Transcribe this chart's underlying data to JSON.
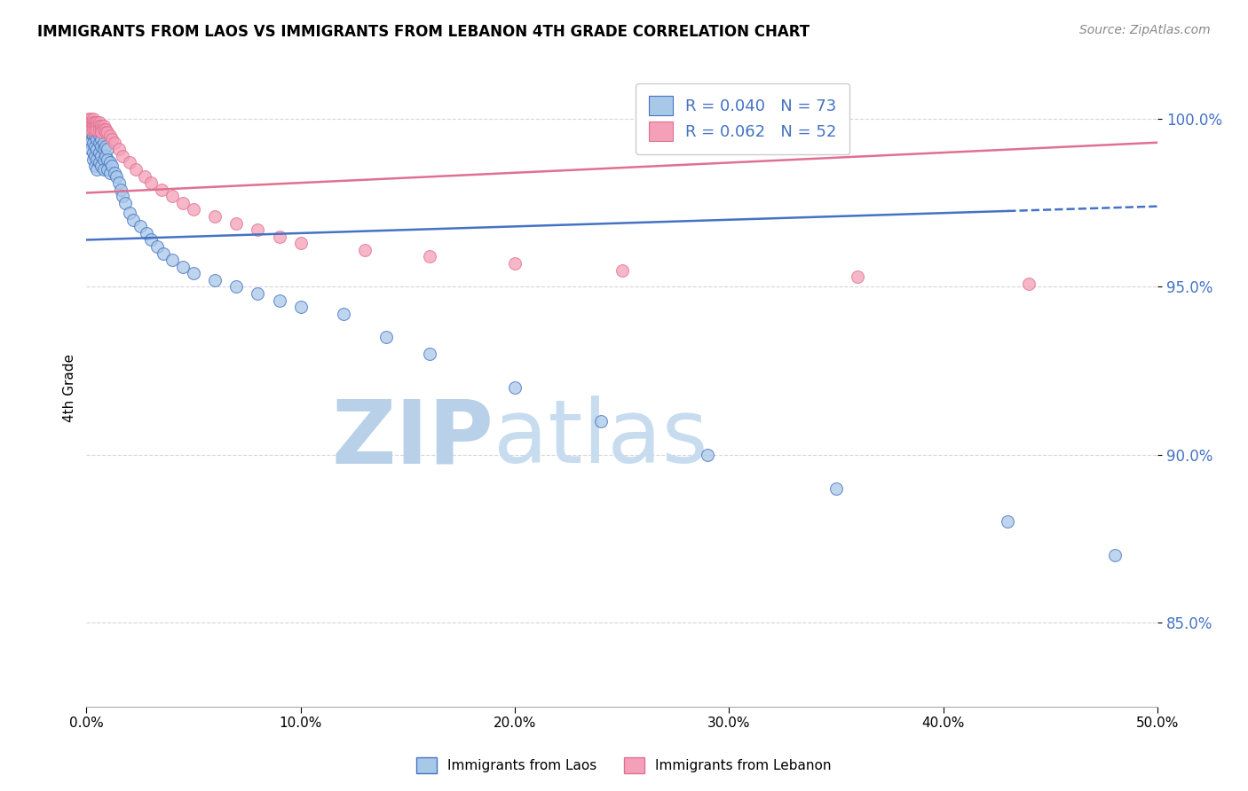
{
  "title": "IMMIGRANTS FROM LAOS VS IMMIGRANTS FROM LEBANON 4TH GRADE CORRELATION CHART",
  "source": "Source: ZipAtlas.com",
  "ylabel": "4th Grade",
  "ytick_values": [
    0.85,
    0.9,
    0.95,
    1.0
  ],
  "xlim": [
    0.0,
    0.5
  ],
  "ylim": [
    0.825,
    1.015
  ],
  "legend_r_laos": "R = 0.040",
  "legend_n_laos": "N = 73",
  "legend_r_lebanon": "R = 0.062",
  "legend_n_lebanon": "N = 52",
  "legend_label_laos": "Immigrants from Laos",
  "legend_label_lebanon": "Immigrants from Lebanon",
  "color_laos": "#A8C8E8",
  "color_lebanon": "#F4A0B8",
  "color_line_laos": "#4472C4",
  "color_line_lebanon": "#E07090",
  "color_text_blue": "#4472C4",
  "color_watermark_zip": "#B8D0E8",
  "color_watermark_atlas": "#C8DCF0",
  "line_laos_x0": 0.0,
  "line_laos_y0": 0.964,
  "line_laos_x1": 0.5,
  "line_laos_y1": 0.974,
  "line_laos_dash_start": 0.43,
  "line_leb_x0": 0.0,
  "line_leb_y0": 0.978,
  "line_leb_x1": 0.5,
  "line_leb_y1": 0.993,
  "laos_x": [
    0.001,
    0.001,
    0.001,
    0.002,
    0.002,
    0.002,
    0.002,
    0.003,
    0.003,
    0.003,
    0.003,
    0.003,
    0.003,
    0.004,
    0.004,
    0.004,
    0.004,
    0.004,
    0.005,
    0.005,
    0.005,
    0.005,
    0.005,
    0.006,
    0.006,
    0.006,
    0.006,
    0.007,
    0.007,
    0.007,
    0.007,
    0.008,
    0.008,
    0.008,
    0.008,
    0.009,
    0.009,
    0.01,
    0.01,
    0.01,
    0.011,
    0.011,
    0.012,
    0.013,
    0.014,
    0.015,
    0.016,
    0.017,
    0.018,
    0.02,
    0.022,
    0.025,
    0.028,
    0.03,
    0.033,
    0.036,
    0.04,
    0.045,
    0.05,
    0.06,
    0.07,
    0.08,
    0.09,
    0.1,
    0.12,
    0.14,
    0.16,
    0.2,
    0.24,
    0.29,
    0.35,
    0.43,
    0.48
  ],
  "laos_y": [
    0.999,
    0.997,
    0.994,
    0.998,
    0.996,
    0.993,
    0.991,
    0.999,
    0.997,
    0.995,
    0.993,
    0.99,
    0.988,
    0.997,
    0.995,
    0.992,
    0.989,
    0.986,
    0.996,
    0.994,
    0.991,
    0.988,
    0.985,
    0.995,
    0.993,
    0.99,
    0.987,
    0.994,
    0.992,
    0.989,
    0.986,
    0.993,
    0.991,
    0.988,
    0.985,
    0.992,
    0.989,
    0.991,
    0.988,
    0.985,
    0.987,
    0.984,
    0.986,
    0.984,
    0.983,
    0.981,
    0.979,
    0.977,
    0.975,
    0.972,
    0.97,
    0.968,
    0.966,
    0.964,
    0.962,
    0.96,
    0.958,
    0.956,
    0.954,
    0.952,
    0.95,
    0.948,
    0.946,
    0.944,
    0.942,
    0.935,
    0.93,
    0.92,
    0.91,
    0.9,
    0.89,
    0.88,
    0.87
  ],
  "lebanon_x": [
    0.001,
    0.001,
    0.001,
    0.002,
    0.002,
    0.002,
    0.002,
    0.003,
    0.003,
    0.003,
    0.003,
    0.004,
    0.004,
    0.004,
    0.005,
    0.005,
    0.005,
    0.006,
    0.006,
    0.006,
    0.007,
    0.007,
    0.007,
    0.008,
    0.008,
    0.009,
    0.009,
    0.01,
    0.011,
    0.012,
    0.013,
    0.015,
    0.017,
    0.02,
    0.023,
    0.027,
    0.03,
    0.035,
    0.04,
    0.045,
    0.05,
    0.06,
    0.07,
    0.08,
    0.09,
    0.1,
    0.13,
    0.16,
    0.2,
    0.25,
    0.36,
    0.44
  ],
  "lebanon_y": [
    1.0,
    0.999,
    0.998,
    1.0,
    0.999,
    0.998,
    0.997,
    1.0,
    0.999,
    0.998,
    0.997,
    0.999,
    0.998,
    0.997,
    0.999,
    0.998,
    0.997,
    0.999,
    0.998,
    0.997,
    0.998,
    0.997,
    0.996,
    0.998,
    0.997,
    0.997,
    0.996,
    0.996,
    0.995,
    0.994,
    0.993,
    0.991,
    0.989,
    0.987,
    0.985,
    0.983,
    0.981,
    0.979,
    0.977,
    0.975,
    0.973,
    0.971,
    0.969,
    0.967,
    0.965,
    0.963,
    0.961,
    0.959,
    0.957,
    0.955,
    0.953,
    0.951
  ]
}
